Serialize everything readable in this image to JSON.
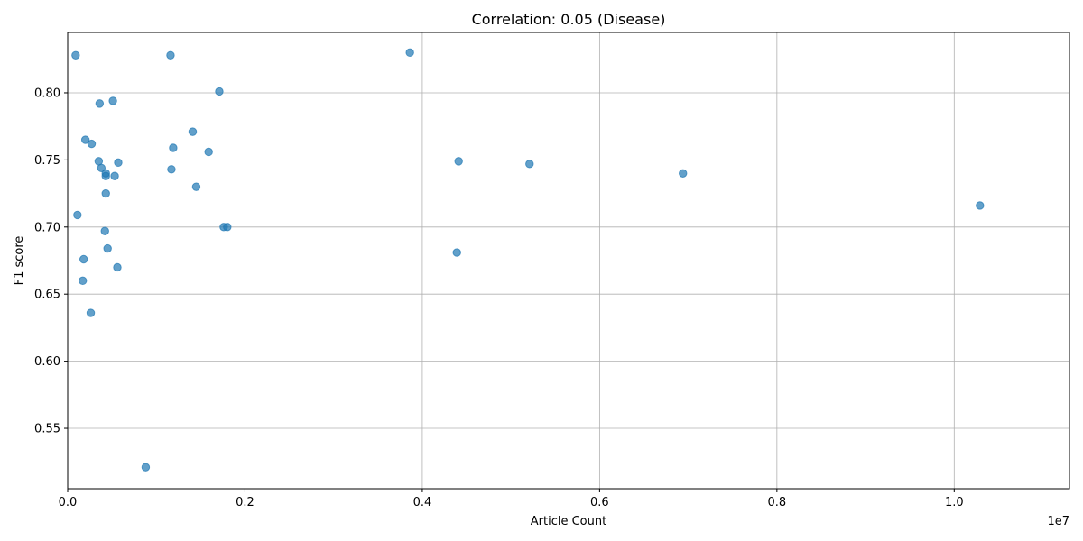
{
  "chart_data": {
    "type": "scatter",
    "title": "Correlation: 0.05 (Disease)",
    "xlabel": "Article Count",
    "ylabel": "F1 score",
    "x_offset_label": "1e7",
    "xlim": [
      0,
      1.13
    ],
    "ylim": [
      0.505,
      0.845
    ],
    "x_ticks": [
      0.0,
      0.2,
      0.4,
      0.6,
      0.8,
      1.0
    ],
    "x_tick_labels": [
      "0.0",
      "0.2",
      "0.4",
      "0.6",
      "0.8",
      "1.0"
    ],
    "y_ticks": [
      0.55,
      0.6,
      0.65,
      0.7,
      0.75,
      0.8
    ],
    "y_tick_labels": [
      "0.55",
      "0.60",
      "0.65",
      "0.70",
      "0.75",
      "0.80"
    ],
    "grid": true,
    "color": "#1f77b4",
    "points": [
      {
        "x": 0.009,
        "y": 0.828
      },
      {
        "x": 0.011,
        "y": 0.709
      },
      {
        "x": 0.017,
        "y": 0.66
      },
      {
        "x": 0.018,
        "y": 0.676
      },
      {
        "x": 0.02,
        "y": 0.765
      },
      {
        "x": 0.026,
        "y": 0.636
      },
      {
        "x": 0.027,
        "y": 0.762
      },
      {
        "x": 0.035,
        "y": 0.749
      },
      {
        "x": 0.036,
        "y": 0.792
      },
      {
        "x": 0.038,
        "y": 0.744
      },
      {
        "x": 0.042,
        "y": 0.697
      },
      {
        "x": 0.043,
        "y": 0.74
      },
      {
        "x": 0.043,
        "y": 0.738
      },
      {
        "x": 0.043,
        "y": 0.725
      },
      {
        "x": 0.045,
        "y": 0.684
      },
      {
        "x": 0.051,
        "y": 0.794
      },
      {
        "x": 0.053,
        "y": 0.738
      },
      {
        "x": 0.056,
        "y": 0.67
      },
      {
        "x": 0.057,
        "y": 0.748
      },
      {
        "x": 0.088,
        "y": 0.521
      },
      {
        "x": 0.116,
        "y": 0.828
      },
      {
        "x": 0.117,
        "y": 0.743
      },
      {
        "x": 0.119,
        "y": 0.759
      },
      {
        "x": 0.141,
        "y": 0.771
      },
      {
        "x": 0.145,
        "y": 0.73
      },
      {
        "x": 0.159,
        "y": 0.756
      },
      {
        "x": 0.171,
        "y": 0.801
      },
      {
        "x": 0.176,
        "y": 0.7
      },
      {
        "x": 0.18,
        "y": 0.7
      },
      {
        "x": 0.386,
        "y": 0.83
      },
      {
        "x": 0.439,
        "y": 0.681
      },
      {
        "x": 0.441,
        "y": 0.749
      },
      {
        "x": 0.521,
        "y": 0.747
      },
      {
        "x": 0.694,
        "y": 0.74
      },
      {
        "x": 1.029,
        "y": 0.716
      }
    ]
  }
}
